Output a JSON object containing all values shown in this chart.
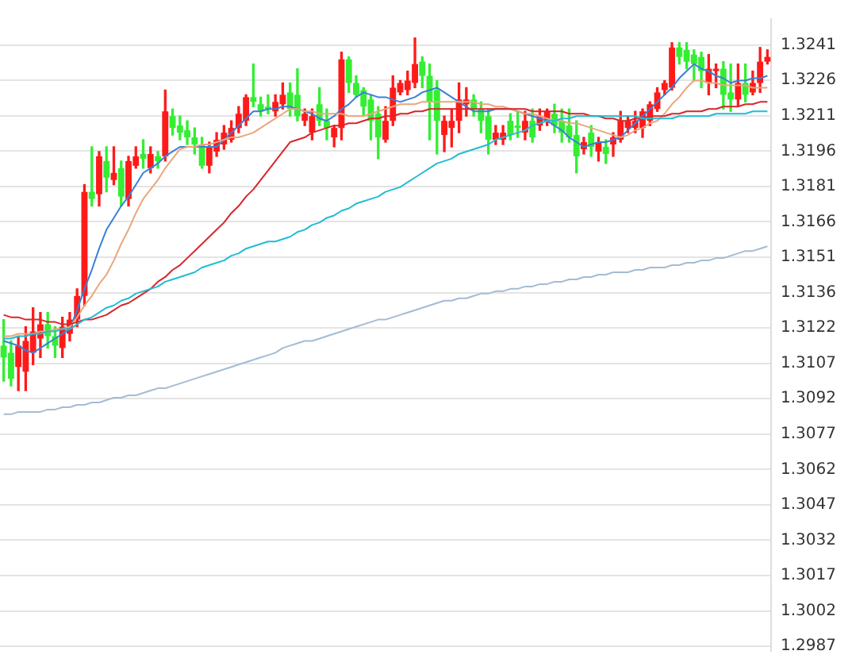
{
  "chart_data": {
    "type": "candlestick",
    "colors": [
      "#33ee33",
      "#33ee33",
      "#ff1a1a",
      "#ff1a1a",
      "#ff1a1a",
      "#ff1a1a",
      "#33ee33",
      "#33ee33",
      "#ff1a1a",
      "#ff1a1a",
      "#ff1a1a",
      "#ff1a1a",
      "#33ee33",
      "#ff1a1a",
      "#33ee33",
      "#ff1a1a",
      "#33ee33",
      "#ff1a1a",
      "#ff1a1a",
      "#33ee33",
      "#ff1a1a",
      "#33ee33",
      "#ff1a1a",
      "#33ee33",
      "#33ee33",
      "#33ee33",
      "#33ee33",
      "#33ee33",
      "#ff1a1a",
      "#ff1a1a",
      "#ff1a1a",
      "#ff1a1a",
      "#ff1a1a",
      "#ff1a1a",
      "#33ee33",
      "#33ee33",
      "#33ee33",
      "#ff1a1a",
      "#ff1a1a",
      "#33ee33",
      "#33ee33",
      "#ff1a1a",
      "#ff1a1a",
      "#33ee33",
      "#33ee33",
      "#ff1a1a",
      "#ff1a1a",
      "#33ee33",
      "#33ee33",
      "#33ee33",
      "#33ee33",
      "#33ee33",
      "#ff1a1a",
      "#ff1a1a",
      "#ff1a1a",
      "#ff1a1a",
      "#ff1a1a",
      "#33ee33",
      "#33ee33",
      "#33ee33",
      "#ff1a1a",
      "#ff1a1a",
      "#ff1a1a",
      "#ff1a1a",
      "#33ee33",
      "#33ee33",
      "#33ee33",
      "#ff1a1a",
      "#ff1a1a",
      "#33ee33",
      "#33ee33",
      "#ff1a1a",
      "#33ee33",
      "#ff1a1a",
      "#ff1a1a",
      "#33ee33",
      "#33ee33",
      "#33ee33",
      "#33ee33",
      "#ff1a1a",
      "#33ee33",
      "#ff1a1a",
      "#33ee33",
      "#ff1a1a",
      "#ff1a1a",
      "#ff1a1a",
      "#ff1a1a",
      "#ff1a1a",
      "#ff1a1a",
      "#ff1a1a",
      "#ff1a1a",
      "#ff1a1a",
      "#33ee33",
      "#33ee33",
      "#33ee33",
      "#33ee33",
      "#ff1a1a",
      "#ff1a1a",
      "#33ee33",
      "#33ee33",
      "#ff1a1a",
      "#33ee33",
      "#ff1a1a",
      "#ff1a1a",
      "#ff1a1a"
    ],
    "grid": "y",
    "tick_labels": "y",
    "ylim": [
      1.2985,
      1.3252
    ],
    "yticks": [
      {
        "value": 1.2987,
        "label": "1.2987"
      },
      {
        "value": 1.30019,
        "label": "1.3002"
      },
      {
        "value": 1.30169,
        "label": "1.3017"
      },
      {
        "value": 1.30318,
        "label": "1.3032"
      },
      {
        "value": 1.30468,
        "label": "1.3047"
      },
      {
        "value": 1.30617,
        "label": "1.3062"
      },
      {
        "value": 1.30766,
        "label": "1.3077"
      },
      {
        "value": 1.30916,
        "label": "1.3092"
      },
      {
        "value": 1.31065,
        "label": "1.3107"
      },
      {
        "value": 1.31215,
        "label": "1.3122"
      },
      {
        "value": 1.31364,
        "label": "1.3136"
      },
      {
        "value": 1.31513,
        "label": "1.3151"
      },
      {
        "value": 1.31663,
        "label": "1.3166"
      },
      {
        "value": 1.31812,
        "label": "1.3181"
      },
      {
        "value": 1.31962,
        "label": "1.3196"
      },
      {
        "value": 1.32111,
        "label": "1.3211"
      },
      {
        "value": 1.32261,
        "label": "1.3226"
      },
      {
        "value": 1.3241,
        "label": "1.3241"
      }
    ],
    "categories": [
      null,
      null,
      null,
      null,
      null,
      null,
      null,
      null,
      null,
      null,
      null,
      null,
      null,
      null,
      null,
      null,
      null,
      null,
      null,
      null,
      null,
      null,
      null,
      null,
      null,
      null,
      null,
      null,
      null,
      null,
      null,
      null,
      null,
      null,
      null,
      null,
      null,
      null,
      null,
      null,
      null,
      null,
      null,
      null,
      null,
      null,
      null,
      null,
      null,
      null,
      null,
      null,
      null,
      null,
      null,
      null,
      null,
      null,
      null,
      null,
      null,
      null,
      null,
      null,
      null,
      null,
      null,
      null,
      null,
      null,
      null,
      null,
      null,
      null,
      null,
      null,
      null,
      null,
      null,
      null,
      null,
      null,
      null,
      null,
      null,
      null,
      null,
      null,
      null,
      null,
      null,
      null,
      null,
      null,
      null,
      null,
      null,
      null,
      null,
      null,
      null,
      null,
      null,
      null,
      null
    ],
    "ohlc": [
      [
        1.3114,
        1.3125,
        1.3099,
        1.3109
      ],
      [
        1.3111,
        1.3116,
        1.3097,
        1.31
      ],
      [
        1.3105,
        1.3118,
        1.3095,
        1.3114
      ],
      [
        1.3103,
        1.3122,
        1.3095,
        1.3116
      ],
      [
        1.3111,
        1.313,
        1.3106,
        1.312
      ],
      [
        1.3117,
        1.3128,
        1.3109,
        1.3123
      ],
      [
        1.3123,
        1.3128,
        1.3113,
        1.3118
      ],
      [
        1.3118,
        1.3122,
        1.3109,
        1.3114
      ],
      [
        1.3113,
        1.3126,
        1.3109,
        1.3122
      ],
      [
        1.3119,
        1.3128,
        1.3116,
        1.3125
      ],
      [
        1.3125,
        1.3138,
        1.3122,
        1.3135
      ],
      [
        1.3135,
        1.3182,
        1.3131,
        1.3179
      ],
      [
        1.3179,
        1.3198,
        1.3173,
        1.3176
      ],
      [
        1.3178,
        1.3196,
        1.3173,
        1.3194
      ],
      [
        1.3192,
        1.3198,
        1.3179,
        1.3185
      ],
      [
        1.3184,
        1.3198,
        1.3182,
        1.3187
      ],
      [
        1.3189,
        1.3192,
        1.3173,
        1.3177
      ],
      [
        1.3176,
        1.3194,
        1.3173,
        1.3192
      ],
      [
        1.319,
        1.3198,
        1.3189,
        1.3194
      ],
      [
        1.3195,
        1.3201,
        1.3189,
        1.3193
      ],
      [
        1.3189,
        1.3198,
        1.3187,
        1.3195
      ],
      [
        1.3194,
        1.3196,
        1.3189,
        1.3192
      ],
      [
        1.3194,
        1.3222,
        1.3192,
        1.3213
      ],
      [
        1.3211,
        1.3214,
        1.3203,
        1.3206
      ],
      [
        1.3207,
        1.3211,
        1.3201,
        1.3204
      ],
      [
        1.3205,
        1.3209,
        1.3199,
        1.3202
      ],
      [
        1.3202,
        1.3206,
        1.3195,
        1.3199
      ],
      [
        1.3199,
        1.3202,
        1.3189,
        1.319
      ],
      [
        1.319,
        1.32,
        1.3187,
        1.3198
      ],
      [
        1.3196,
        1.3204,
        1.3194,
        1.3201
      ],
      [
        1.3199,
        1.3207,
        1.3197,
        1.3204
      ],
      [
        1.3201,
        1.3209,
        1.32,
        1.3206
      ],
      [
        1.3206,
        1.3215,
        1.3204,
        1.3212
      ],
      [
        1.3209,
        1.322,
        1.3207,
        1.3219
      ],
      [
        1.3219,
        1.3233,
        1.3215,
        1.3217
      ],
      [
        1.3216,
        1.3219,
        1.3211,
        1.3213
      ],
      [
        1.3215,
        1.322,
        1.3212,
        1.3214
      ],
      [
        1.3213,
        1.322,
        1.3211,
        1.3217
      ],
      [
        1.3216,
        1.3225,
        1.3214,
        1.322
      ],
      [
        1.3221,
        1.3225,
        1.3211,
        1.3214
      ],
      [
        1.322,
        1.3231,
        1.3209,
        1.3211
      ],
      [
        1.3209,
        1.3214,
        1.3207,
        1.3212
      ],
      [
        1.3204,
        1.3214,
        1.3201,
        1.3211
      ],
      [
        1.3216,
        1.3223,
        1.3207,
        1.3209
      ],
      [
        1.3209,
        1.3214,
        1.3201,
        1.3206
      ],
      [
        1.3202,
        1.3207,
        1.3198,
        1.3206
      ],
      [
        1.3206,
        1.3238,
        1.3201,
        1.3235
      ],
      [
        1.3235,
        1.3236,
        1.3221,
        1.3225
      ],
      [
        1.3225,
        1.3228,
        1.3219,
        1.322
      ],
      [
        1.3222,
        1.3223,
        1.3211,
        1.3215
      ],
      [
        1.3218,
        1.322,
        1.3201,
        1.3209
      ],
      [
        1.3212,
        1.3215,
        1.3193,
        1.3202
      ],
      [
        1.3201,
        1.3215,
        1.32,
        1.3209
      ],
      [
        1.3209,
        1.3228,
        1.3207,
        1.3223
      ],
      [
        1.3221,
        1.3226,
        1.322,
        1.3225
      ],
      [
        1.3222,
        1.323,
        1.322,
        1.3226
      ],
      [
        1.3225,
        1.3244,
        1.3223,
        1.3233
      ],
      [
        1.3234,
        1.3236,
        1.3223,
        1.3228
      ],
      [
        1.3228,
        1.3233,
        1.3201,
        1.3217
      ],
      [
        1.3222,
        1.3226,
        1.3195,
        1.3209
      ],
      [
        1.3203,
        1.3211,
        1.3196,
        1.3209
      ],
      [
        1.3206,
        1.3214,
        1.3198,
        1.3209
      ],
      [
        1.3209,
        1.3225,
        1.3204,
        1.3218
      ],
      [
        1.3216,
        1.3223,
        1.3211,
        1.3218
      ],
      [
        1.3218,
        1.322,
        1.3211,
        1.3214
      ],
      [
        1.3214,
        1.3217,
        1.3204,
        1.3209
      ],
      [
        1.3211,
        1.3214,
        1.3195,
        1.3201
      ],
      [
        1.3201,
        1.3207,
        1.3199,
        1.3204
      ],
      [
        1.3201,
        1.3207,
        1.3199,
        1.3204
      ],
      [
        1.3209,
        1.3212,
        1.3201,
        1.3203
      ],
      [
        1.3207,
        1.3213,
        1.3202,
        1.3206
      ],
      [
        1.3204,
        1.3213,
        1.3201,
        1.3209
      ],
      [
        1.3209,
        1.3214,
        1.32,
        1.3202
      ],
      [
        1.3207,
        1.3214,
        1.3205,
        1.3211
      ],
      [
        1.3209,
        1.3214,
        1.3207,
        1.3213
      ],
      [
        1.3212,
        1.3216,
        1.3204,
        1.3207
      ],
      [
        1.3209,
        1.3214,
        1.32,
        1.3204
      ],
      [
        1.3207,
        1.3214,
        1.32,
        1.3202
      ],
      [
        1.3203,
        1.3209,
        1.3187,
        1.3194
      ],
      [
        1.3197,
        1.3202,
        1.3195,
        1.32
      ],
      [
        1.3204,
        1.3207,
        1.3194,
        1.3198
      ],
      [
        1.3196,
        1.3202,
        1.3192,
        1.32
      ],
      [
        1.3198,
        1.3201,
        1.3191,
        1.3195
      ],
      [
        1.3199,
        1.3204,
        1.3194,
        1.3202
      ],
      [
        1.3201,
        1.3213,
        1.32,
        1.3209
      ],
      [
        1.3206,
        1.3211,
        1.3204,
        1.3209
      ],
      [
        1.3206,
        1.3213,
        1.3204,
        1.3209
      ],
      [
        1.3206,
        1.3214,
        1.3202,
        1.3213
      ],
      [
        1.3209,
        1.3217,
        1.3207,
        1.3216
      ],
      [
        1.3214,
        1.3223,
        1.3213,
        1.3221
      ],
      [
        1.3222,
        1.3226,
        1.322,
        1.3225
      ],
      [
        1.3223,
        1.3242,
        1.3222,
        1.324
      ],
      [
        1.324,
        1.3242,
        1.3233,
        1.3236
      ],
      [
        1.3239,
        1.3242,
        1.3231,
        1.3234
      ],
      [
        1.3237,
        1.3239,
        1.3226,
        1.3233
      ],
      [
        1.3236,
        1.3238,
        1.3223,
        1.323
      ],
      [
        1.3225,
        1.3237,
        1.322,
        1.3231
      ],
      [
        1.323,
        1.3233,
        1.3223,
        1.3231
      ],
      [
        1.3231,
        1.3234,
        1.3214,
        1.322
      ],
      [
        1.3221,
        1.3233,
        1.3213,
        1.3218
      ],
      [
        1.3218,
        1.3233,
        1.3215,
        1.3225
      ],
      [
        1.3225,
        1.3233,
        1.3217,
        1.322
      ],
      [
        1.3221,
        1.323,
        1.322,
        1.3225
      ],
      [
        1.3225,
        1.324,
        1.3221,
        1.3234
      ],
      [
        1.3234,
        1.3239,
        1.3233,
        1.3236
      ]
    ],
    "series": [
      {
        "type": "line",
        "color": "#a3bcd3",
        "values": [
          1.3085,
          1.3085,
          1.3086,
          1.3086,
          1.3086,
          1.3086,
          1.3087,
          1.3087,
          1.3088,
          1.3088,
          1.3089,
          1.3089,
          1.309,
          1.309,
          1.3091,
          1.3092,
          1.3092,
          1.3093,
          1.3093,
          1.3094,
          1.3095,
          1.3096,
          1.3096,
          1.3097,
          1.3098,
          1.3099,
          1.31,
          1.3101,
          1.3102,
          1.3103,
          1.3104,
          1.3105,
          1.3106,
          1.3107,
          1.3108,
          1.3109,
          1.311,
          1.3111,
          1.3113,
          1.3114,
          1.3115,
          1.3116,
          1.3116,
          1.3117,
          1.3118,
          1.3119,
          1.312,
          1.3121,
          1.3122,
          1.3123,
          1.3124,
          1.3125,
          1.3125,
          1.3126,
          1.3127,
          1.3128,
          1.3129,
          1.313,
          1.3131,
          1.3132,
          1.3133,
          1.3133,
          1.3134,
          1.3134,
          1.3135,
          1.3136,
          1.3136,
          1.3137,
          1.3137,
          1.3138,
          1.3138,
          1.3139,
          1.3139,
          1.314,
          1.314,
          1.3141,
          1.3141,
          1.3142,
          1.3142,
          1.3143,
          1.3143,
          1.3144,
          1.3144,
          1.3145,
          1.3145,
          1.3145,
          1.3146,
          1.3146,
          1.3147,
          1.3147,
          1.3147,
          1.3148,
          1.3148,
          1.3149,
          1.3149,
          1.315,
          1.315,
          1.3151,
          1.3151,
          1.3152,
          1.3153,
          1.3154,
          1.3154,
          1.3155,
          1.3156
        ]
      },
      {
        "type": "line",
        "color": "#22bcd4",
        "values": [
          1.3117,
          1.3117,
          1.3118,
          1.3118,
          1.3119,
          1.3119,
          1.312,
          1.312,
          1.3121,
          1.3121,
          1.3123,
          1.3125,
          1.3126,
          1.3128,
          1.313,
          1.3131,
          1.3133,
          1.3134,
          1.3136,
          1.3137,
          1.3138,
          1.3139,
          1.3141,
          1.3142,
          1.3143,
          1.3144,
          1.3145,
          1.3147,
          1.3148,
          1.3149,
          1.315,
          1.3152,
          1.3153,
          1.3155,
          1.3156,
          1.3157,
          1.3158,
          1.3158,
          1.3159,
          1.316,
          1.3162,
          1.3163,
          1.3165,
          1.3166,
          1.3168,
          1.3169,
          1.3171,
          1.3172,
          1.3174,
          1.3175,
          1.3176,
          1.3177,
          1.3179,
          1.318,
          1.3181,
          1.3183,
          1.3185,
          1.3187,
          1.3189,
          1.3191,
          1.3192,
          1.3193,
          1.3195,
          1.3196,
          1.3197,
          1.3198,
          1.3199,
          1.3201,
          1.3202,
          1.3203,
          1.3204,
          1.3205,
          1.3207,
          1.3208,
          1.3209,
          1.3209,
          1.321,
          1.321,
          1.3211,
          1.3211,
          1.3211,
          1.3211,
          1.3211,
          1.3211,
          1.3211,
          1.3211,
          1.3211,
          1.321,
          1.321,
          1.321,
          1.321,
          1.321,
          1.3211,
          1.3211,
          1.3211,
          1.3211,
          1.3211,
          1.3212,
          1.3212,
          1.3212,
          1.3212,
          1.3212,
          1.3213,
          1.3213,
          1.3213
        ]
      },
      {
        "type": "line",
        "color": "#d8262b",
        "values": [
          1.3127,
          1.3126,
          1.3126,
          1.3125,
          1.3125,
          1.3125,
          1.3124,
          1.3124,
          1.3123,
          1.3123,
          1.3124,
          1.3125,
          1.3125,
          1.3126,
          1.3127,
          1.3129,
          1.3131,
          1.3132,
          1.3134,
          1.3136,
          1.3138,
          1.3141,
          1.3143,
          1.3146,
          1.3148,
          1.3151,
          1.3154,
          1.3157,
          1.316,
          1.3163,
          1.3166,
          1.317,
          1.3173,
          1.3177,
          1.318,
          1.3184,
          1.3188,
          1.3192,
          1.3196,
          1.32,
          1.3201,
          1.3202,
          1.3204,
          1.3205,
          1.3206,
          1.3207,
          1.3207,
          1.3208,
          1.3208,
          1.3209,
          1.321,
          1.321,
          1.3211,
          1.3211,
          1.3212,
          1.3212,
          1.3213,
          1.3213,
          1.3214,
          1.3214,
          1.3214,
          1.3214,
          1.3214,
          1.3214,
          1.3214,
          1.3214,
          1.3214,
          1.3214,
          1.3214,
          1.3214,
          1.3214,
          1.3214,
          1.3213,
          1.3213,
          1.3213,
          1.3213,
          1.3213,
          1.3212,
          1.3212,
          1.3212,
          1.3211,
          1.3211,
          1.321,
          1.321,
          1.3209,
          1.3209,
          1.321,
          1.321,
          1.3211,
          1.3211,
          1.3211,
          1.3212,
          1.3212,
          1.3213,
          1.3213,
          1.3213,
          1.3214,
          1.3214,
          1.3215,
          1.3215,
          1.3215,
          1.3216,
          1.3216,
          1.3217,
          1.3217
        ]
      },
      {
        "type": "line",
        "color": "#e9a67c",
        "values": [
          1.3118,
          1.3118,
          1.3119,
          1.3119,
          1.3119,
          1.312,
          1.312,
          1.3121,
          1.3121,
          1.3122,
          1.3126,
          1.3131,
          1.3135,
          1.314,
          1.3144,
          1.315,
          1.3157,
          1.3163,
          1.317,
          1.3176,
          1.318,
          1.3184,
          1.3189,
          1.3193,
          1.3197,
          1.3198,
          1.3198,
          1.3199,
          1.3199,
          1.32,
          1.3201,
          1.3202,
          1.3202,
          1.3203,
          1.3204,
          1.3206,
          1.3208,
          1.321,
          1.3212,
          1.3214,
          1.3214,
          1.3213,
          1.3213,
          1.3212,
          1.3212,
          1.3212,
          1.3212,
          1.3211,
          1.3211,
          1.3211,
          1.3212,
          1.3213,
          1.3214,
          1.3215,
          1.3216,
          1.3216,
          1.3216,
          1.3217,
          1.3217,
          1.3217,
          1.3217,
          1.3217,
          1.3217,
          1.3217,
          1.3217,
          1.3216,
          1.3216,
          1.3215,
          1.3215,
          1.3214,
          1.3213,
          1.3212,
          1.3212,
          1.3211,
          1.321,
          1.3209,
          1.3209,
          1.3208,
          1.3208,
          1.3207,
          1.3206,
          1.3205,
          1.3204,
          1.3203,
          1.3202,
          1.3203,
          1.3205,
          1.3206,
          1.3208,
          1.3209,
          1.3212,
          1.3216,
          1.3219,
          1.3223,
          1.3226,
          1.3226,
          1.3225,
          1.3225,
          1.3224,
          1.3224,
          1.3224,
          1.3224,
          1.3223,
          1.3223,
          1.3223
        ]
      },
      {
        "type": "line",
        "color": "#3a7fd8",
        "values": [
          1.3116,
          1.3115,
          1.3114,
          1.3112,
          1.3111,
          1.3113,
          1.3115,
          1.3117,
          1.3119,
          1.3121,
          1.3129,
          1.3138,
          1.3146,
          1.3155,
          1.3163,
          1.3168,
          1.3173,
          1.3177,
          1.3182,
          1.3187,
          1.3189,
          1.3191,
          1.3194,
          1.3196,
          1.3198,
          1.3198,
          1.3198,
          1.3198,
          1.3198,
          1.3198,
          1.3201,
          1.3204,
          1.3207,
          1.321,
          1.3213,
          1.3213,
          1.3214,
          1.3214,
          1.3215,
          1.3215,
          1.3214,
          1.3213,
          1.3212,
          1.321,
          1.3209,
          1.3211,
          1.3214,
          1.3216,
          1.3219,
          1.3221,
          1.322,
          1.3219,
          1.3219,
          1.3218,
          1.3217,
          1.3218,
          1.3219,
          1.3221,
          1.3222,
          1.3223,
          1.3221,
          1.3219,
          1.3217,
          1.3215,
          1.3213,
          1.3213,
          1.3213,
          1.3214,
          1.3214,
          1.3214,
          1.3213,
          1.3212,
          1.3211,
          1.321,
          1.3209,
          1.3207,
          1.3205,
          1.3202,
          1.32,
          1.3198,
          1.3199,
          1.32,
          1.32,
          1.3201,
          1.3202,
          1.3205,
          1.3208,
          1.3211,
          1.3214,
          1.3217,
          1.322,
          1.3223,
          1.3227,
          1.323,
          1.3233,
          1.3231,
          1.323,
          1.3228,
          1.3227,
          1.3225,
          1.3226,
          1.3226,
          1.3227,
          1.3227,
          1.3228
        ]
      }
    ]
  }
}
